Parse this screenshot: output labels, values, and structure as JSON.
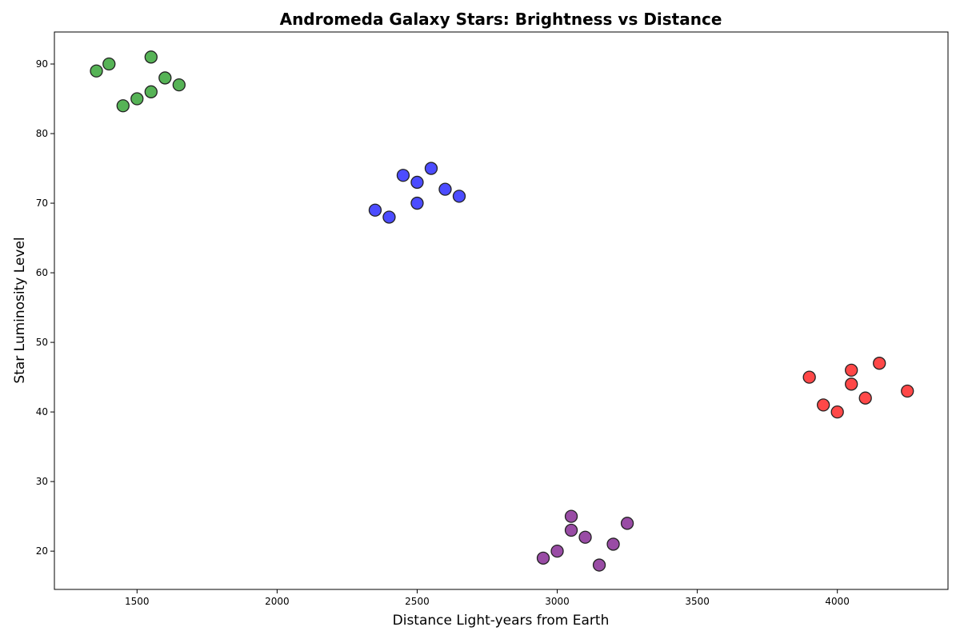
{
  "chart_data": {
    "type": "scatter",
    "title": "Andromeda Galaxy Stars: Brightness vs Distance",
    "xlabel": "Distance Light-years from Earth",
    "ylabel": "Star Luminosity Level",
    "xlim": [
      1205,
      4395
    ],
    "ylim": [
      14.5,
      94.6
    ],
    "xticks": [
      1500,
      2000,
      2500,
      3000,
      3500,
      4000
    ],
    "yticks": [
      20,
      30,
      40,
      50,
      60,
      70,
      80,
      90
    ],
    "grid": false,
    "legend": "none",
    "marker_edge_color": "#222222",
    "series": [
      {
        "color": "#2ca02c",
        "points": [
          {
            "x": 1355,
            "y": 89
          },
          {
            "x": 1400,
            "y": 90
          },
          {
            "x": 1450,
            "y": 84
          },
          {
            "x": 1500,
            "y": 85
          },
          {
            "x": 1550,
            "y": 91
          },
          {
            "x": 1550,
            "y": 86
          },
          {
            "x": 1600,
            "y": 88
          },
          {
            "x": 1650,
            "y": 87
          }
        ]
      },
      {
        "color": "#1f1fff",
        "points": [
          {
            "x": 2350,
            "y": 69
          },
          {
            "x": 2400,
            "y": 68
          },
          {
            "x": 2450,
            "y": 74
          },
          {
            "x": 2500,
            "y": 73
          },
          {
            "x": 2500,
            "y": 70
          },
          {
            "x": 2550,
            "y": 75
          },
          {
            "x": 2600,
            "y": 72
          },
          {
            "x": 2650,
            "y": 71
          }
        ]
      },
      {
        "color": "#ff1a1a",
        "points": [
          {
            "x": 3900,
            "y": 45
          },
          {
            "x": 3950,
            "y": 41
          },
          {
            "x": 4000,
            "y": 40
          },
          {
            "x": 4050,
            "y": 46
          },
          {
            "x": 4050,
            "y": 44
          },
          {
            "x": 4100,
            "y": 42
          },
          {
            "x": 4150,
            "y": 47
          },
          {
            "x": 4250,
            "y": 43
          }
        ]
      },
      {
        "color": "#7f1f8f",
        "points": [
          {
            "x": 2950,
            "y": 19
          },
          {
            "x": 3000,
            "y": 20
          },
          {
            "x": 3050,
            "y": 25
          },
          {
            "x": 3050,
            "y": 23
          },
          {
            "x": 3100,
            "y": 22
          },
          {
            "x": 3150,
            "y": 18
          },
          {
            "x": 3200,
            "y": 21
          },
          {
            "x": 3250,
            "y": 24
          }
        ]
      }
    ]
  }
}
